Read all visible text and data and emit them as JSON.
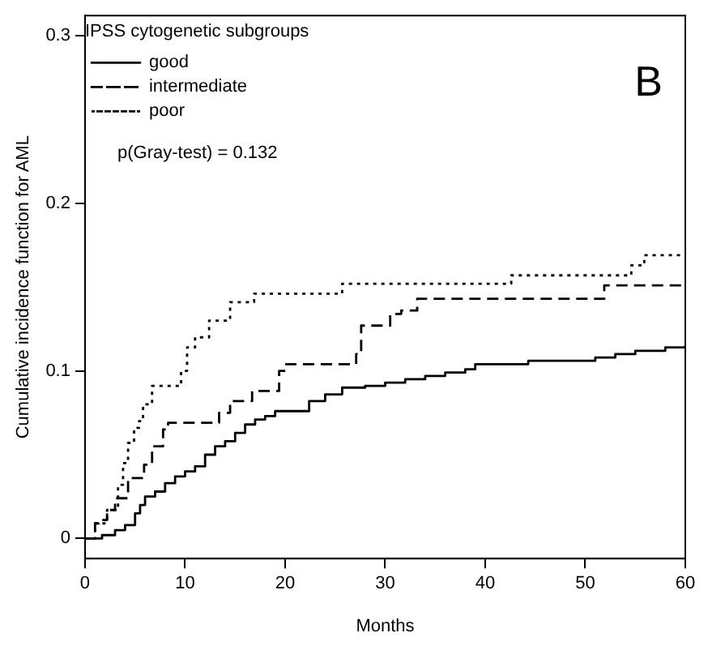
{
  "chart_data": {
    "type": "step",
    "xlabel": "Months",
    "ylabel": "Cumulative incidence function for AML",
    "legend_title": "IPSS cytogenetic subgroups",
    "legend": "top left",
    "grid": false,
    "marker": "none",
    "xlim": [
      0,
      60
    ],
    "ylim": [
      -0.012,
      0.312
    ],
    "xticks": [
      0,
      10,
      20,
      30,
      40,
      50,
      60
    ],
    "yticks": [
      0,
      0.1,
      0.2,
      0.3
    ],
    "annotations": [
      "p(Gray-test) = 0.132",
      "B"
    ],
    "series": [
      {
        "name": "good",
        "color": "#000000",
        "line_style": "solid",
        "x": [
          0,
          1.7,
          3,
          4,
          5,
          5.5,
          6,
          7,
          8,
          9,
          10,
          11,
          12,
          13,
          14,
          15,
          16,
          17,
          18,
          19,
          22.4,
          24,
          25.7,
          28,
          30,
          32,
          34,
          36,
          38,
          39,
          44.3,
          51,
          53,
          55,
          58,
          60
        ],
        "values": [
          0,
          0.002,
          0.005,
          0.008,
          0.015,
          0.02,
          0.025,
          0.028,
          0.033,
          0.037,
          0.04,
          0.043,
          0.05,
          0.055,
          0.058,
          0.063,
          0.068,
          0.071,
          0.073,
          0.076,
          0.082,
          0.086,
          0.09,
          0.091,
          0.093,
          0.095,
          0.097,
          0.099,
          0.101,
          0.104,
          0.106,
          0.108,
          0.11,
          0.112,
          0.114,
          0.115
        ]
      },
      {
        "name": "intermediate",
        "color": "#000000",
        "line_style": "dashed",
        "x": [
          0,
          1,
          1.4,
          2.2,
          3,
          4.3,
          5.9,
          6.7,
          7.8,
          8.3,
          13.4,
          14.5,
          16.7,
          19.4,
          20.1,
          27.1,
          27.6,
          30.5,
          31.6,
          33.2,
          51.9,
          60
        ],
        "values": [
          0,
          0.009,
          0.011,
          0.017,
          0.024,
          0.036,
          0.044,
          0.055,
          0.065,
          0.069,
          0.075,
          0.082,
          0.088,
          0.1,
          0.104,
          0.11,
          0.127,
          0.134,
          0.136,
          0.143,
          0.151,
          0.151
        ]
      },
      {
        "name": "poor",
        "color": "#000000",
        "line_style": "dotted",
        "x": [
          0,
          1,
          2.2,
          3.3,
          3.8,
          4.3,
          4.9,
          5.4,
          5.8,
          6.7,
          9.6,
          10.2,
          11,
          12.4,
          14.5,
          16.9,
          25.7,
          42.6,
          54.6,
          55.9,
          60
        ],
        "values": [
          0,
          0.009,
          0.017,
          0.032,
          0.045,
          0.057,
          0.066,
          0.07,
          0.08,
          0.091,
          0.1,
          0.114,
          0.12,
          0.13,
          0.141,
          0.146,
          0.152,
          0.157,
          0.163,
          0.169,
          0.169
        ]
      }
    ]
  }
}
